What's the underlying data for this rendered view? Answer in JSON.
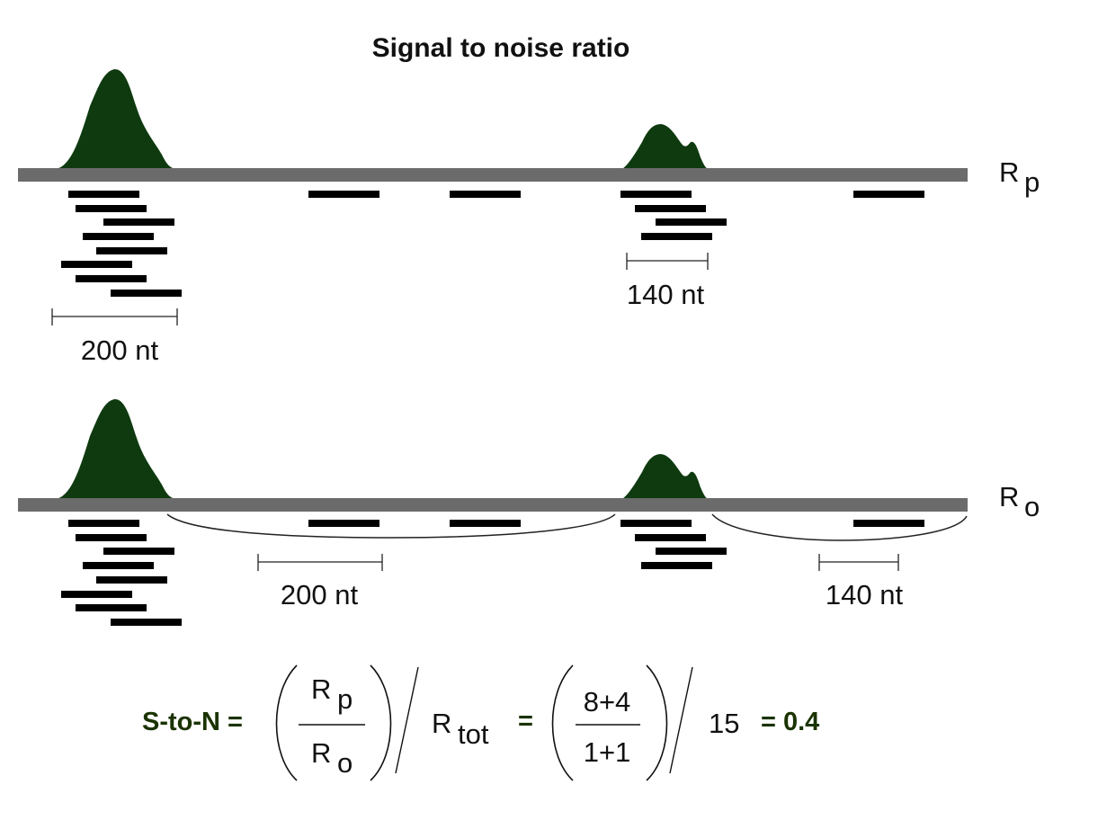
{
  "title": "Signal to noise ratio",
  "tracks": {
    "top_label_main": "R",
    "top_label_sub": "p",
    "bottom_label_main": "R",
    "bottom_label_sub": "o"
  },
  "scale_labels": {
    "top_left": "200 nt",
    "top_right": "140 nt",
    "bottom_left": "200 nt",
    "bottom_right": "140 nt"
  },
  "formula": {
    "lhs": "S-to-N =",
    "frac1_num_main": "R",
    "frac1_num_sub": "p",
    "frac1_den_main": "R",
    "frac1_den_sub": "o",
    "rtot_main": "R",
    "rtot_sub": "tot",
    "equals": "=",
    "frac2_num": "8+4",
    "frac2_den": "1+1",
    "divisor": "15",
    "result": "= 0.4"
  },
  "colors": {
    "peak": "#0f3a10",
    "track": "#6b6b6b",
    "formula_accent": "#1a3300"
  }
}
